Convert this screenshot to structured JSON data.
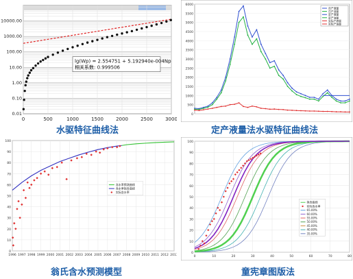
{
  "captions": {
    "p1": "水驱特征曲线法",
    "p2": "定产液量法水驱特征曲线法",
    "p3": "翁氏含水预测模型",
    "p4": "童宪章图版法"
  },
  "colors": {
    "caption": "#1f5fa8",
    "p1_points": "#111111",
    "p1_fit": "#e02020",
    "p2_blue": "#3050d0",
    "p2_green": "#20b040",
    "p2_red": "#e03030",
    "p3_model1": "#30c030",
    "p3_model2": "#3030c0",
    "p3_points": "#e03030",
    "p4_fit": "#50d050",
    "p4_purple": "#8020c0",
    "p4_points": "#e03030"
  },
  "chart_data": [
    {
      "id": "p1",
      "type": "scatter",
      "title": "",
      "y_scale": "log",
      "ylim": [
        0.01,
        100000
      ],
      "xlim": [
        0,
        3000
      ],
      "x_ticks": [
        "0",
        "500",
        "1000",
        "1500",
        "2000",
        "2500",
        "3000"
      ],
      "y_ticks": [
        "0.01",
        "0.10",
        "1.00",
        "10.00",
        "100.00",
        "1000.00",
        "10000.00"
      ],
      "equation": "lg(Wp) = 2.554751 + 5.192940e-004Np",
      "correlation": "相关系数: 0.999506",
      "fit_line": {
        "intercept_log10": 2.554751,
        "slope": 0.00051929
      },
      "points": [
        [
          5,
          0.02
        ],
        [
          15,
          0.08
        ],
        [
          30,
          0.3
        ],
        [
          45,
          0.7
        ],
        [
          60,
          1.2
        ],
        [
          80,
          2.0
        ],
        [
          100,
          3.0
        ],
        [
          130,
          4.5
        ],
        [
          160,
          6.5
        ],
        [
          200,
          9
        ],
        [
          250,
          13
        ],
        [
          300,
          18
        ],
        [
          350,
          24
        ],
        [
          400,
          30
        ],
        [
          450,
          38
        ],
        [
          500,
          47
        ],
        [
          600,
          66
        ],
        [
          700,
          90
        ],
        [
          800,
          120
        ],
        [
          900,
          155
        ],
        [
          1000,
          200
        ],
        [
          1100,
          250
        ],
        [
          1200,
          320
        ],
        [
          1300,
          400
        ],
        [
          1400,
          490
        ],
        [
          1500,
          600
        ],
        [
          1600,
          740
        ],
        [
          1700,
          900
        ],
        [
          1800,
          1080
        ],
        [
          1900,
          1300
        ],
        [
          2000,
          1550
        ],
        [
          2100,
          1850
        ],
        [
          2200,
          2200
        ],
        [
          2300,
          2700
        ],
        [
          2400,
          3300
        ],
        [
          2500,
          4000
        ],
        [
          2600,
          4900
        ],
        [
          2700,
          6000
        ],
        [
          2800,
          7400
        ],
        [
          2900,
          9200
        ],
        [
          2990,
          11500
        ]
      ]
    },
    {
      "id": "p2",
      "type": "line",
      "title": "",
      "ylim": [
        0,
        6000
      ],
      "y_ticks": [
        "0",
        "500",
        "1000",
        "1500",
        "2000",
        "2500",
        "3000",
        "3500",
        "4000",
        "4500",
        "5000",
        "5500",
        "6000"
      ],
      "legend": [
        "月产液量",
        "月产油量",
        "定产液量",
        "定产油量",
        "实际产液量",
        "实际产油量"
      ],
      "series": [
        {
          "name": "月产液量",
          "values": [
            300,
            280,
            350,
            420,
            600,
            900,
            1300,
            2000,
            3000,
            4200,
            5600,
            5900,
            4800,
            4200,
            4600,
            3800,
            3300,
            2800,
            2900,
            2400,
            2100,
            1700,
            1400,
            1200,
            1100,
            1000,
            900,
            900,
            800,
            1100,
            1300,
            1000,
            800,
            700,
            700,
            800
          ]
        },
        {
          "name": "月产油量",
          "values": [
            250,
            240,
            300,
            360,
            500,
            800,
            1150,
            1800,
            2700,
            3800,
            5000,
            5300,
            4300,
            3800,
            4100,
            3400,
            3000,
            2500,
            2600,
            2100,
            1900,
            1500,
            1250,
            1050,
            950,
            880,
            800,
            800,
            700,
            950,
            1150,
            900,
            700,
            600,
            600,
            700
          ]
        },
        {
          "name": "实际产油量",
          "values": [
            200,
            180,
            220,
            260,
            300,
            350,
            400,
            420,
            500,
            520,
            600,
            400,
            350,
            420,
            380,
            300,
            280,
            250,
            260,
            240,
            230,
            200,
            190,
            180,
            170,
            160,
            150,
            150,
            140,
            130,
            130,
            120,
            110,
            110,
            100,
            100
          ]
        }
      ],
      "x_count": 36
    },
    {
      "id": "p3",
      "type": "line",
      "title": "",
      "ylim": [
        0,
        100
      ],
      "y_ticks": [
        "0",
        "10",
        "20",
        "30",
        "40",
        "50",
        "60",
        "70",
        "80",
        "90",
        "100"
      ],
      "x_ticks": [
        "1996",
        "1997",
        "1998",
        "1999",
        "2000",
        "2001",
        "2002",
        "2003",
        "2004",
        "2005",
        "2006",
        "2007",
        "2008",
        "2009",
        "2010",
        "2011",
        "2012",
        "2013"
      ],
      "legend": [
        "含水率预测曲线",
        "含水率拟合曲线",
        "实际含水率"
      ],
      "series": [
        {
          "name": "含水率预测曲线",
          "x": [
            2007.5,
            2008,
            2009,
            2010,
            2011,
            2012,
            2013
          ],
          "values": [
            95.5,
            96.2,
            97.0,
            97.6,
            98.1,
            98.5,
            98.8
          ]
        },
        {
          "name": "含水率拟合曲线",
          "x": [
            1996,
            1997,
            1998,
            1999,
            2000,
            2001,
            2002,
            2003,
            2004,
            2005,
            2006,
            2007,
            2007.5
          ],
          "values": [
            55,
            62,
            68,
            73,
            77,
            81,
            84,
            87,
            89.5,
            91.8,
            93.6,
            95,
            95.5
          ]
        },
        {
          "name": "实际含水率",
          "x": [
            1996.05,
            1996.1,
            1996.2,
            1996.35,
            1996.5,
            1996.65,
            1996.8,
            1997,
            1997.2,
            1997.4,
            1997.6,
            1997.8,
            1998,
            1998.3,
            1998.6,
            1999,
            1999.4,
            1999.8,
            2000.2,
            2000.7,
            2001.2,
            2001.7,
            2002.2,
            2002.8,
            2003.3,
            2003.8,
            2004.3,
            2004.8,
            2005.2,
            2005.6,
            2006,
            2006.5,
            2007,
            2007.3
          ],
          "values": [
            12,
            5,
            25,
            20,
            38,
            45,
            30,
            42,
            55,
            48,
            62,
            57,
            60,
            64,
            66,
            70,
            72,
            69,
            75,
            76,
            80,
            65,
            82,
            84,
            85,
            88,
            87,
            90,
            89,
            92,
            93,
            94,
            94,
            95
          ]
        }
      ]
    },
    {
      "id": "p4",
      "type": "line",
      "title": "",
      "ylim": [
        0,
        100
      ],
      "xlim": [
        0,
        80
      ],
      "y_ticks": [
        "0",
        "10",
        "20",
        "30",
        "40",
        "50",
        "60",
        "70",
        "80",
        "90",
        "100"
      ],
      "x_ticks": [
        "0",
        "10",
        "20",
        "30",
        "40",
        "50",
        "60",
        "70",
        "80"
      ],
      "legend": [
        "拟合曲线",
        "实际含水率",
        "65.00%",
        "60.00%",
        "55.00%",
        "50.00%",
        "45.00%",
        "40.00%",
        "35.00%"
      ],
      "series": [
        {
          "name": "65.00%",
          "midpoint": 14
        },
        {
          "name": "60.00%",
          "midpoint": 18
        },
        {
          "name": "55.00%",
          "midpoint": 22
        },
        {
          "name": "50.00%",
          "midpoint": 26
        },
        {
          "name": "45.00%",
          "midpoint": 30
        },
        {
          "name": "40.00%",
          "midpoint": 34
        },
        {
          "name": "35.00%",
          "midpoint": 38
        },
        {
          "name": "拟合曲线",
          "midpoint": 30
        }
      ],
      "points": [
        [
          2,
          3
        ],
        [
          3,
          6
        ],
        [
          4,
          10
        ],
        [
          5,
          8
        ],
        [
          6,
          15
        ],
        [
          7,
          20
        ],
        [
          8,
          25
        ],
        [
          9,
          28
        ],
        [
          10,
          30
        ],
        [
          11,
          35
        ],
        [
          12,
          40
        ],
        [
          13,
          38
        ],
        [
          14,
          45
        ],
        [
          15,
          50
        ],
        [
          16,
          55
        ],
        [
          17,
          58
        ],
        [
          18,
          62
        ],
        [
          19,
          64
        ],
        [
          20,
          66
        ],
        [
          21,
          70
        ],
        [
          22,
          72
        ],
        [
          23,
          74
        ],
        [
          24,
          76
        ],
        [
          25,
          78
        ],
        [
          26,
          80
        ],
        [
          27,
          82
        ],
        [
          28,
          83
        ],
        [
          29,
          84
        ],
        [
          30,
          85
        ],
        [
          31,
          86
        ],
        [
          32,
          87
        ],
        [
          33,
          88
        ],
        [
          34,
          89
        ]
      ]
    }
  ]
}
